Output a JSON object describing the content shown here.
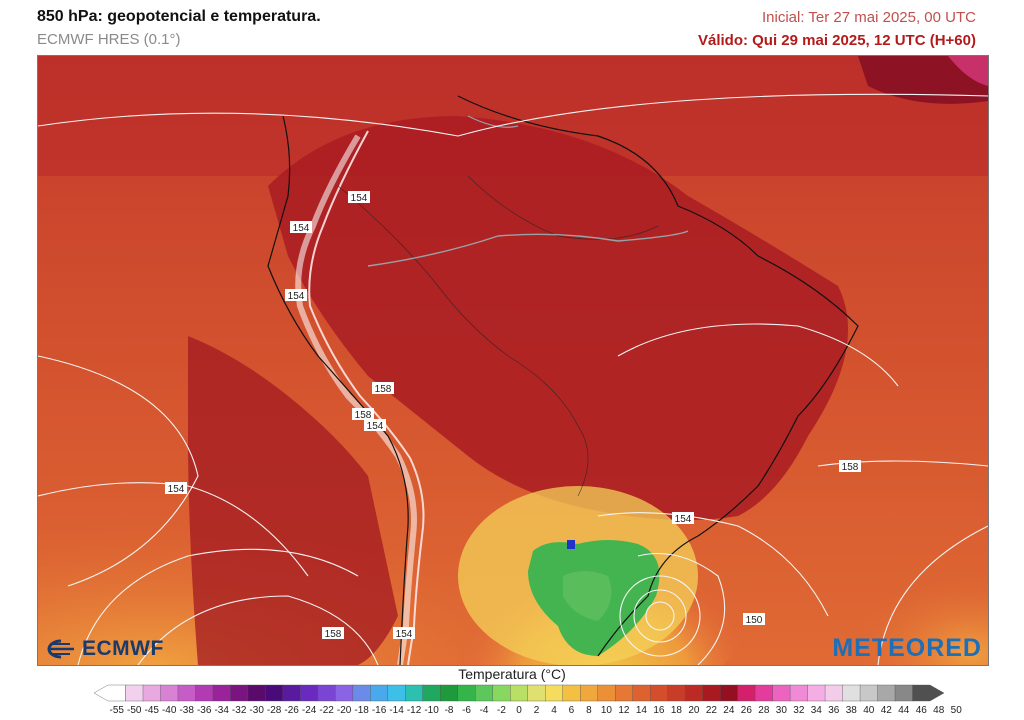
{
  "header": {
    "title": "850 hPa: geopotencial e temperatura.",
    "subtitle": "ECMWF HRES (0.1°)",
    "initial": "Inicial: Ter 27 mai 2025, 00 UTC",
    "valid": "Válido: Qui 29 mai 2025, 12 UTC (H+60)"
  },
  "map": {
    "contour_labels": [
      "154",
      "154",
      "154",
      "158",
      "158",
      "154",
      "154",
      "158",
      "154",
      "158",
      "154",
      "150"
    ],
    "logos": {
      "left": "ECMWF",
      "right": "METEORED"
    }
  },
  "legend": {
    "title": "Temperatura (°C)",
    "ticks": [
      "-55",
      "-50",
      "-45",
      "-40",
      "-38",
      "-36",
      "-34",
      "-32",
      "-30",
      "-28",
      "-26",
      "-24",
      "-22",
      "-20",
      "-18",
      "-16",
      "-14",
      "-12",
      "-10",
      "-8",
      "-6",
      "-4",
      "-2",
      "0",
      "2",
      "4",
      "6",
      "8",
      "10",
      "12",
      "14",
      "16",
      "18",
      "20",
      "22",
      "24",
      "26",
      "28",
      "30",
      "32",
      "34",
      "36",
      "38",
      "40",
      "42",
      "44",
      "46",
      "48",
      "50"
    ],
    "colors": [
      "#ffffff",
      "#f2d0ee",
      "#e8a8e0",
      "#d882d4",
      "#c65cc6",
      "#b23ab2",
      "#9a229a",
      "#7a1480",
      "#5a0a6a",
      "#4a0a7a",
      "#5a1aa0",
      "#6a2ac0",
      "#7a44d4",
      "#8a64e4",
      "#6a8ce8",
      "#4aa8ec",
      "#3cc0e8",
      "#2cc0b0",
      "#20a860",
      "#1e9a3c",
      "#34b54a",
      "#5cc85c",
      "#88d860",
      "#b8e064",
      "#e0e070",
      "#f6dc5c",
      "#f4c044",
      "#f0a83c",
      "#ec9038",
      "#e67834",
      "#de6230",
      "#d44e2c",
      "#c83c28",
      "#bc2a24",
      "#a81a20",
      "#921020",
      "#d2206a",
      "#e43c9c",
      "#ec64c0",
      "#f08ad6",
      "#f4aee4",
      "#f2cce8",
      "#e0e0e0",
      "#c8c8c8",
      "#a8a8a8",
      "#888888",
      "#505050"
    ]
  }
}
